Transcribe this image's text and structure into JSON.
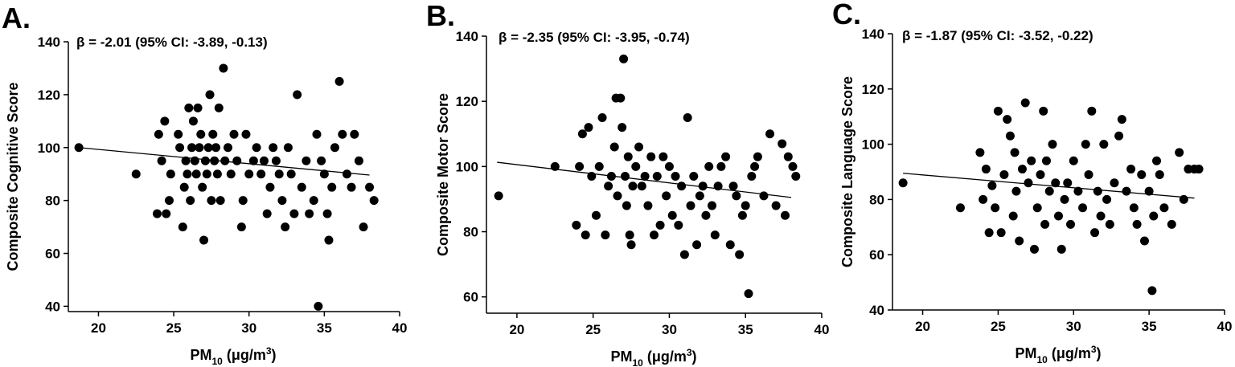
{
  "figure": {
    "panels": [
      {
        "letter": "A.",
        "annotation": "β = -2.01 (95% CI: -3.89, -0.13)"
      },
      {
        "letter": "B.",
        "annotation": "β = -2.35 (95% CI: -3.95, -0.74)"
      },
      {
        "letter": "C.",
        "annotation": "β = -1.87 (95% CI: -3.52, -0.22)"
      }
    ]
  },
  "chart_data": [
    {
      "type": "scatter",
      "title": "",
      "annotation": "β = -2.01 (95% CI: -3.89, -0.13)",
      "xlabel": "PM₁₀ (μg/m³)",
      "ylabel": "Composite Cognitive Score",
      "xlim": [
        18,
        40
      ],
      "ylim": [
        38,
        140
      ],
      "xticks": [
        20,
        25,
        30,
        35,
        40
      ],
      "yticks": [
        40,
        60,
        80,
        100,
        120,
        140
      ],
      "trendline": [
        [
          18.7,
          100
        ],
        [
          38,
          89.6
        ]
      ],
      "points": [
        [
          18.7,
          100
        ],
        [
          22.5,
          90
        ],
        [
          23.9,
          75
        ],
        [
          24,
          105
        ],
        [
          24.2,
          95
        ],
        [
          24.4,
          110
        ],
        [
          24.5,
          75
        ],
        [
          24.7,
          80
        ],
        [
          24.8,
          90
        ],
        [
          25.3,
          105
        ],
        [
          25.4,
          100
        ],
        [
          25.6,
          70
        ],
        [
          25.7,
          85
        ],
        [
          25.8,
          95
        ],
        [
          25.9,
          90
        ],
        [
          26,
          115
        ],
        [
          26.1,
          80
        ],
        [
          26.2,
          100
        ],
        [
          26.3,
          110
        ],
        [
          26.4,
          95
        ],
        [
          26.5,
          90
        ],
        [
          26.6,
          115
        ],
        [
          26.7,
          100
        ],
        [
          26.8,
          105
        ],
        [
          26.9,
          85
        ],
        [
          27,
          65
        ],
        [
          27.1,
          95
        ],
        [
          27.2,
          90
        ],
        [
          27.3,
          100
        ],
        [
          27.4,
          120
        ],
        [
          27.5,
          80
        ],
        [
          27.6,
          105
        ],
        [
          27.7,
          95
        ],
        [
          27.8,
          100
        ],
        [
          27.9,
          90
        ],
        [
          28,
          115
        ],
        [
          28.1,
          80
        ],
        [
          28.3,
          130
        ],
        [
          28.4,
          95
        ],
        [
          28.6,
          100
        ],
        [
          28.8,
          90
        ],
        [
          29,
          105
        ],
        [
          29.2,
          95
        ],
        [
          29.5,
          70
        ],
        [
          29.6,
          80
        ],
        [
          29.8,
          105
        ],
        [
          30,
          90
        ],
        [
          30.3,
          95
        ],
        [
          30.5,
          100
        ],
        [
          30.8,
          90
        ],
        [
          31,
          95
        ],
        [
          31.2,
          75
        ],
        [
          31.4,
          85
        ],
        [
          31.6,
          100
        ],
        [
          31.8,
          95
        ],
        [
          32,
          90
        ],
        [
          32.2,
          80
        ],
        [
          32.4,
          70
        ],
        [
          32.6,
          100
        ],
        [
          32.8,
          90
        ],
        [
          33,
          75
        ],
        [
          33.2,
          120
        ],
        [
          33.5,
          85
        ],
        [
          33.8,
          95
        ],
        [
          34,
          75
        ],
        [
          34.3,
          80
        ],
        [
          34.5,
          105
        ],
        [
          34.6,
          40
        ],
        [
          34.8,
          95
        ],
        [
          35,
          90
        ],
        [
          35.2,
          75
        ],
        [
          35.3,
          65
        ],
        [
          35.5,
          85
        ],
        [
          35.7,
          100
        ],
        [
          36,
          125
        ],
        [
          36.2,
          105
        ],
        [
          36.5,
          90
        ],
        [
          36.8,
          85
        ],
        [
          37,
          105
        ],
        [
          37.3,
          95
        ],
        [
          37.6,
          70
        ],
        [
          38,
          85
        ],
        [
          38.3,
          80
        ]
      ]
    },
    {
      "type": "scatter",
      "title": "",
      "annotation": "β = -2.35 (95% CI: -3.95, -0.74)",
      "xlabel": "PM₁₀ (μg/m³)",
      "ylabel": "Composite Motor Score",
      "xlim": [
        18,
        40
      ],
      "ylim": [
        55,
        140
      ],
      "xticks": [
        20,
        25,
        30,
        35,
        40
      ],
      "yticks": [
        60,
        80,
        100,
        120,
        140
      ],
      "trendline": [
        [
          18.7,
          101.3
        ],
        [
          38,
          90.5
        ]
      ],
      "points": [
        [
          18.8,
          91
        ],
        [
          22.5,
          100
        ],
        [
          23.9,
          82
        ],
        [
          24.1,
          100
        ],
        [
          24.3,
          110
        ],
        [
          24.5,
          79
        ],
        [
          24.7,
          112
        ],
        [
          24.9,
          97
        ],
        [
          25.2,
          85
        ],
        [
          25.4,
          100
        ],
        [
          25.6,
          115
        ],
        [
          25.8,
          79
        ],
        [
          26,
          94
        ],
        [
          26.2,
          97
        ],
        [
          26.4,
          106
        ],
        [
          26.5,
          121
        ],
        [
          26.6,
          91
        ],
        [
          26.8,
          121
        ],
        [
          26.9,
          112
        ],
        [
          27,
          133
        ],
        [
          27.1,
          97
        ],
        [
          27.2,
          88
        ],
        [
          27.3,
          103
        ],
        [
          27.4,
          79
        ],
        [
          27.5,
          76
        ],
        [
          27.6,
          94
        ],
        [
          27.8,
          100
        ],
        [
          28,
          106
        ],
        [
          28.2,
          94
        ],
        [
          28.4,
          97
        ],
        [
          28.6,
          88
        ],
        [
          28.8,
          103
        ],
        [
          29,
          79
        ],
        [
          29.2,
          97
        ],
        [
          29.4,
          82
        ],
        [
          29.6,
          103
        ],
        [
          29.8,
          91
        ],
        [
          30,
          100
        ],
        [
          30.2,
          85
        ],
        [
          30.4,
          97
        ],
        [
          30.6,
          82
        ],
        [
          30.8,
          94
        ],
        [
          31,
          73
        ],
        [
          31.2,
          115
        ],
        [
          31.4,
          88
        ],
        [
          31.6,
          97
        ],
        [
          31.8,
          76
        ],
        [
          32,
          91
        ],
        [
          32.2,
          94
        ],
        [
          32.4,
          85
        ],
        [
          32.6,
          100
        ],
        [
          32.8,
          88
        ],
        [
          33,
          79
        ],
        [
          33.2,
          94
        ],
        [
          33.4,
          100
        ],
        [
          33.7,
          103
        ],
        [
          34,
          76
        ],
        [
          34.2,
          94
        ],
        [
          34.4,
          91
        ],
        [
          34.6,
          73
        ],
        [
          34.8,
          85
        ],
        [
          35,
          88
        ],
        [
          35.2,
          61
        ],
        [
          35.4,
          97
        ],
        [
          35.6,
          100
        ],
        [
          35.8,
          103
        ],
        [
          36.2,
          91
        ],
        [
          36.6,
          110
        ],
        [
          37,
          88
        ],
        [
          37.4,
          107
        ],
        [
          37.6,
          85
        ],
        [
          37.8,
          103
        ],
        [
          38.1,
          100
        ],
        [
          38.3,
          97
        ]
      ]
    },
    {
      "type": "scatter",
      "title": "",
      "annotation": "β = -1.87 (95% CI: -3.52, -0.22)",
      "xlabel": "PM₁₀ (μg/m³)",
      "ylabel": "Composite Language Score",
      "xlim": [
        18,
        40
      ],
      "ylim": [
        40,
        140
      ],
      "xticks": [
        20,
        25,
        30,
        35,
        40
      ],
      "yticks": [
        40,
        60,
        80,
        100,
        120,
        140
      ],
      "trendline": [
        [
          18.7,
          89.5
        ],
        [
          38,
          80.5
        ]
      ],
      "points": [
        [
          18.7,
          86
        ],
        [
          22.5,
          77
        ],
        [
          23.8,
          97
        ],
        [
          24,
          80
        ],
        [
          24.2,
          91
        ],
        [
          24.4,
          68
        ],
        [
          24.6,
          85
        ],
        [
          24.8,
          77
        ],
        [
          25,
          112
        ],
        [
          25.2,
          68
        ],
        [
          25.4,
          89
        ],
        [
          25.6,
          109
        ],
        [
          25.8,
          103
        ],
        [
          26,
          74
        ],
        [
          26.1,
          97
        ],
        [
          26.2,
          83
        ],
        [
          26.4,
          65
        ],
        [
          26.6,
          91
        ],
        [
          26.8,
          115
        ],
        [
          27,
          86
        ],
        [
          27.2,
          94
        ],
        [
          27.4,
          62
        ],
        [
          27.6,
          77
        ],
        [
          27.8,
          89
        ],
        [
          28,
          112
        ],
        [
          28.1,
          71
        ],
        [
          28.2,
          94
        ],
        [
          28.4,
          83
        ],
        [
          28.6,
          100
        ],
        [
          28.8,
          86
        ],
        [
          29,
          74
        ],
        [
          29.2,
          62
        ],
        [
          29.4,
          80
        ],
        [
          29.6,
          86
        ],
        [
          29.8,
          71
        ],
        [
          30,
          94
        ],
        [
          30.3,
          83
        ],
        [
          30.6,
          77
        ],
        [
          30.8,
          100
        ],
        [
          31,
          89
        ],
        [
          31.2,
          112
        ],
        [
          31.4,
          68
        ],
        [
          31.6,
          83
        ],
        [
          31.8,
          74
        ],
        [
          32,
          100
        ],
        [
          32.2,
          80
        ],
        [
          32.4,
          71
        ],
        [
          32.7,
          86
        ],
        [
          33,
          103
        ],
        [
          33.2,
          109
        ],
        [
          33.5,
          83
        ],
        [
          33.8,
          91
        ],
        [
          34,
          77
        ],
        [
          34.2,
          71
        ],
        [
          34.5,
          89
        ],
        [
          34.7,
          65
        ],
        [
          35,
          83
        ],
        [
          35.2,
          47
        ],
        [
          35.3,
          74
        ],
        [
          35.5,
          94
        ],
        [
          35.7,
          89
        ],
        [
          36,
          77
        ],
        [
          36.5,
          71
        ],
        [
          37,
          97
        ],
        [
          37.3,
          80
        ],
        [
          37.6,
          91
        ],
        [
          38,
          91
        ],
        [
          38.3,
          91
        ]
      ]
    }
  ]
}
